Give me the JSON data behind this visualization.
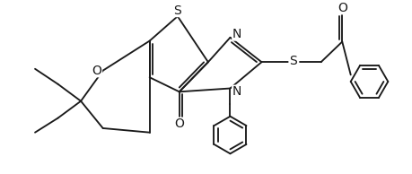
{
  "bg": "#ffffff",
  "lc": "#1a1a1a",
  "lw": 1.35,
  "fs": 9,
  "figsize": [
    4.6,
    1.94
  ],
  "dpi": 100,
  "xlim": [
    0,
    460
  ],
  "ylim": [
    -10,
    194
  ]
}
